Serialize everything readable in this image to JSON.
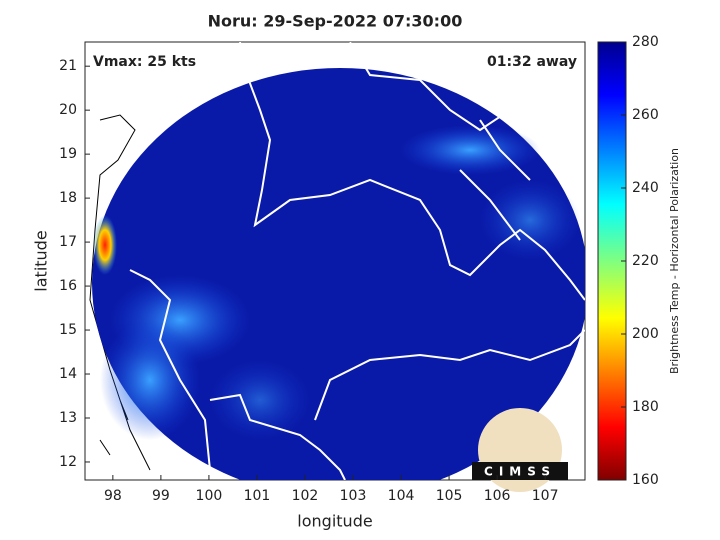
{
  "chart_data": {
    "type": "map",
    "title": "Noru: 29-Sep-2022 07:30:00",
    "annotations": [
      "Vmax: 25 kts",
      "01:32 away"
    ],
    "x_label": "longitude",
    "y_label": "latitude",
    "xlim": [
      97.42,
      107.83
    ],
    "xticks": [
      98,
      99,
      100,
      101,
      102,
      103,
      104,
      105,
      106,
      107
    ],
    "ylim": [
      11.59,
      21.55
    ],
    "yticks": [
      12,
      13,
      14,
      15,
      16,
      17,
      18,
      19,
      20,
      21
    ],
    "colorbar": {
      "label": "Brightness Temp - Horizontal Polarization",
      "lim": [
        160,
        280
      ],
      "ticks": [
        160,
        180,
        200,
        220,
        240,
        260,
        280
      ]
    },
    "logo": "CIMSS"
  }
}
